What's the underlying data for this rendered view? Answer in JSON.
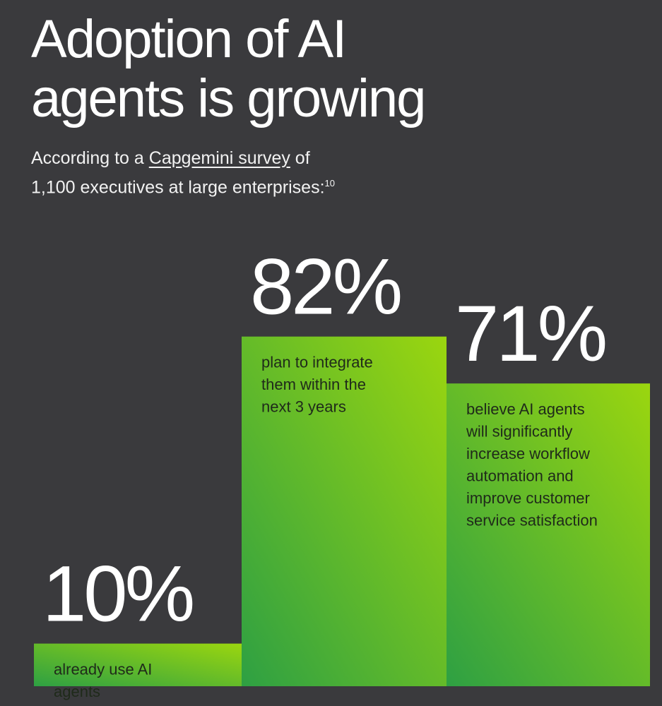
{
  "title_lines": [
    "Adoption of AI",
    "agents is growing"
  ],
  "subtitle": {
    "prefix": "According to a ",
    "link": "Capgemini survey",
    "suffix": " of",
    "line2": "1,100 executives at large enterprises:",
    "footnote": "10"
  },
  "colors": {
    "background": "#3a3a3d",
    "bar_dark": "#2ea043",
    "bar_light": "#9bd60f"
  },
  "chart_data": {
    "type": "bar",
    "categories": [
      "already use AI agents",
      "plan to integrate them within the next 3 years",
      "believe AI agents will significantly increase workflow automation and improve customer service satisfaction"
    ],
    "values": [
      10,
      82,
      71
    ],
    "value_labels": [
      "10%",
      "82%",
      "71%"
    ],
    "bar_text_lines": [
      [
        "already use AI",
        "agents"
      ],
      [
        "plan to integrate",
        "them within the",
        "next 3 years"
      ],
      [
        "believe AI agents",
        "will significantly",
        "increase workflow",
        "automation and",
        "improve customer",
        "service satisfaction"
      ]
    ],
    "ylim": [
      0,
      100
    ],
    "grid": false,
    "legend": "none"
  }
}
